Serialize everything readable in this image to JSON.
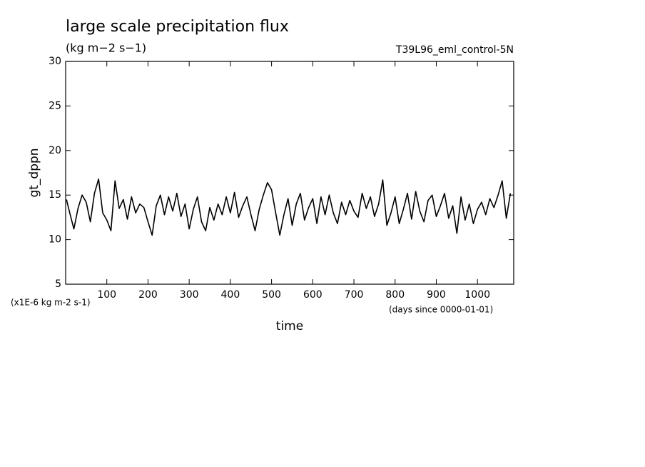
{
  "chart_data": {
    "type": "line",
    "title": "large scale precipitation flux",
    "subtitle": "(kg m−2 s−1)",
    "run_label": "T39L96_eml_control-5N",
    "y_label": "gt_dppn",
    "x_label": "time",
    "y_unit_label": "(x1E-6 kg m-2 s-1)",
    "x_unit_label": "(days since 0000-01-01)",
    "xlim": [
      0,
      1088
    ],
    "ylim": [
      5,
      30
    ],
    "xticks": [
      100,
      200,
      300,
      400,
      500,
      600,
      700,
      800,
      900,
      1000
    ],
    "yticks": [
      5,
      10,
      15,
      20,
      25,
      30
    ],
    "x": [
      2,
      10,
      20,
      30,
      40,
      50,
      60,
      70,
      80,
      90,
      100,
      110,
      120,
      130,
      140,
      150,
      160,
      170,
      180,
      190,
      200,
      210,
      220,
      230,
      240,
      250,
      260,
      270,
      280,
      290,
      300,
      310,
      320,
      330,
      340,
      350,
      360,
      370,
      380,
      390,
      400,
      410,
      420,
      430,
      440,
      450,
      460,
      470,
      480,
      490,
      500,
      510,
      520,
      530,
      540,
      550,
      560,
      570,
      580,
      590,
      600,
      610,
      620,
      630,
      640,
      650,
      660,
      670,
      680,
      690,
      700,
      710,
      720,
      730,
      740,
      750,
      760,
      770,
      780,
      790,
      800,
      810,
      820,
      830,
      840,
      850,
      860,
      870,
      880,
      890,
      900,
      910,
      920,
      930,
      940,
      950,
      960,
      970,
      980,
      990,
      1000,
      1010,
      1020,
      1030,
      1040,
      1050,
      1060,
      1070,
      1080
    ],
    "series": [
      {
        "name": "gt_dppn",
        "color": "#000000",
        "values": [
          14.5,
          13.0,
          11.2,
          13.5,
          15.0,
          14.2,
          12.0,
          15.2,
          16.8,
          13.0,
          12.2,
          11.0,
          16.6,
          13.5,
          14.5,
          12.3,
          14.8,
          13.0,
          14.0,
          13.6,
          12.0,
          10.5,
          13.8,
          15.0,
          12.8,
          14.8,
          13.2,
          15.2,
          12.6,
          14.0,
          11.2,
          13.4,
          14.8,
          12.0,
          11.0,
          13.6,
          12.2,
          14.0,
          12.8,
          14.8,
          13.0,
          15.3,
          12.5,
          13.8,
          14.8,
          12.8,
          11.0,
          13.4,
          15.0,
          16.4,
          15.6,
          13.0,
          10.5,
          12.8,
          14.6,
          11.6,
          14.0,
          15.2,
          12.2,
          13.6,
          14.6,
          11.8,
          14.8,
          12.8,
          15.0,
          13.0,
          11.8,
          14.2,
          12.8,
          14.4,
          13.2,
          12.5,
          15.2,
          13.5,
          14.8,
          12.6,
          14.0,
          16.7,
          11.6,
          13.0,
          14.8,
          11.8,
          13.4,
          15.2,
          12.3,
          15.4,
          13.2,
          12.0,
          14.4,
          15.0,
          12.6,
          13.8,
          15.2,
          12.4,
          13.8,
          10.7,
          14.8,
          12.2,
          14.0,
          11.8,
          13.4,
          14.2,
          12.8,
          14.6,
          13.6,
          15.0,
          16.6,
          12.4,
          15.2
        ]
      }
    ]
  }
}
